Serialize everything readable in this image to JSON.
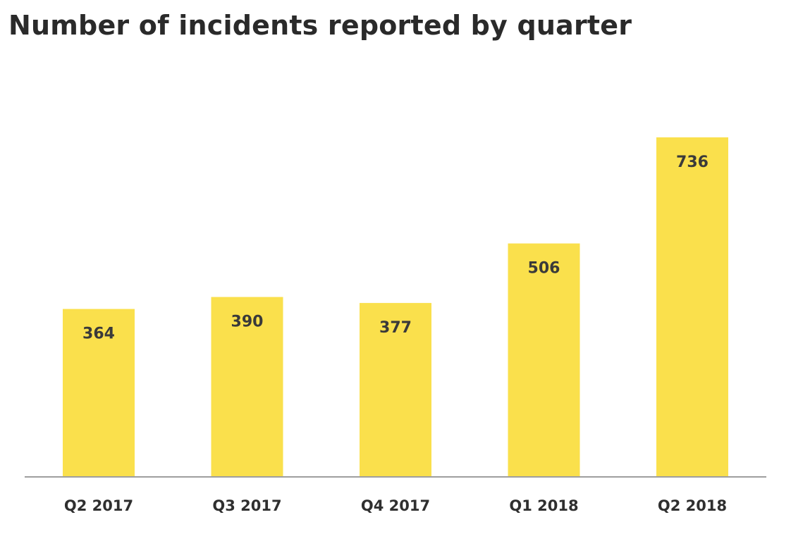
{
  "chart_data": {
    "type": "bar",
    "title": "Number of incidents reported by quarter",
    "xlabel": "",
    "ylabel": "",
    "categories": [
      "Q2 2017",
      "Q3 2017",
      "Q4 2017",
      "Q1 2018",
      "Q2 2018"
    ],
    "values": [
      364,
      390,
      377,
      506,
      736
    ],
    "ylim": [
      0,
      736
    ],
    "grid": false,
    "legend": "none",
    "data_labels": true,
    "colors": {
      "bar": "#fae04c",
      "axis": "#9e9e9e",
      "text": "#2f2f2f"
    }
  }
}
